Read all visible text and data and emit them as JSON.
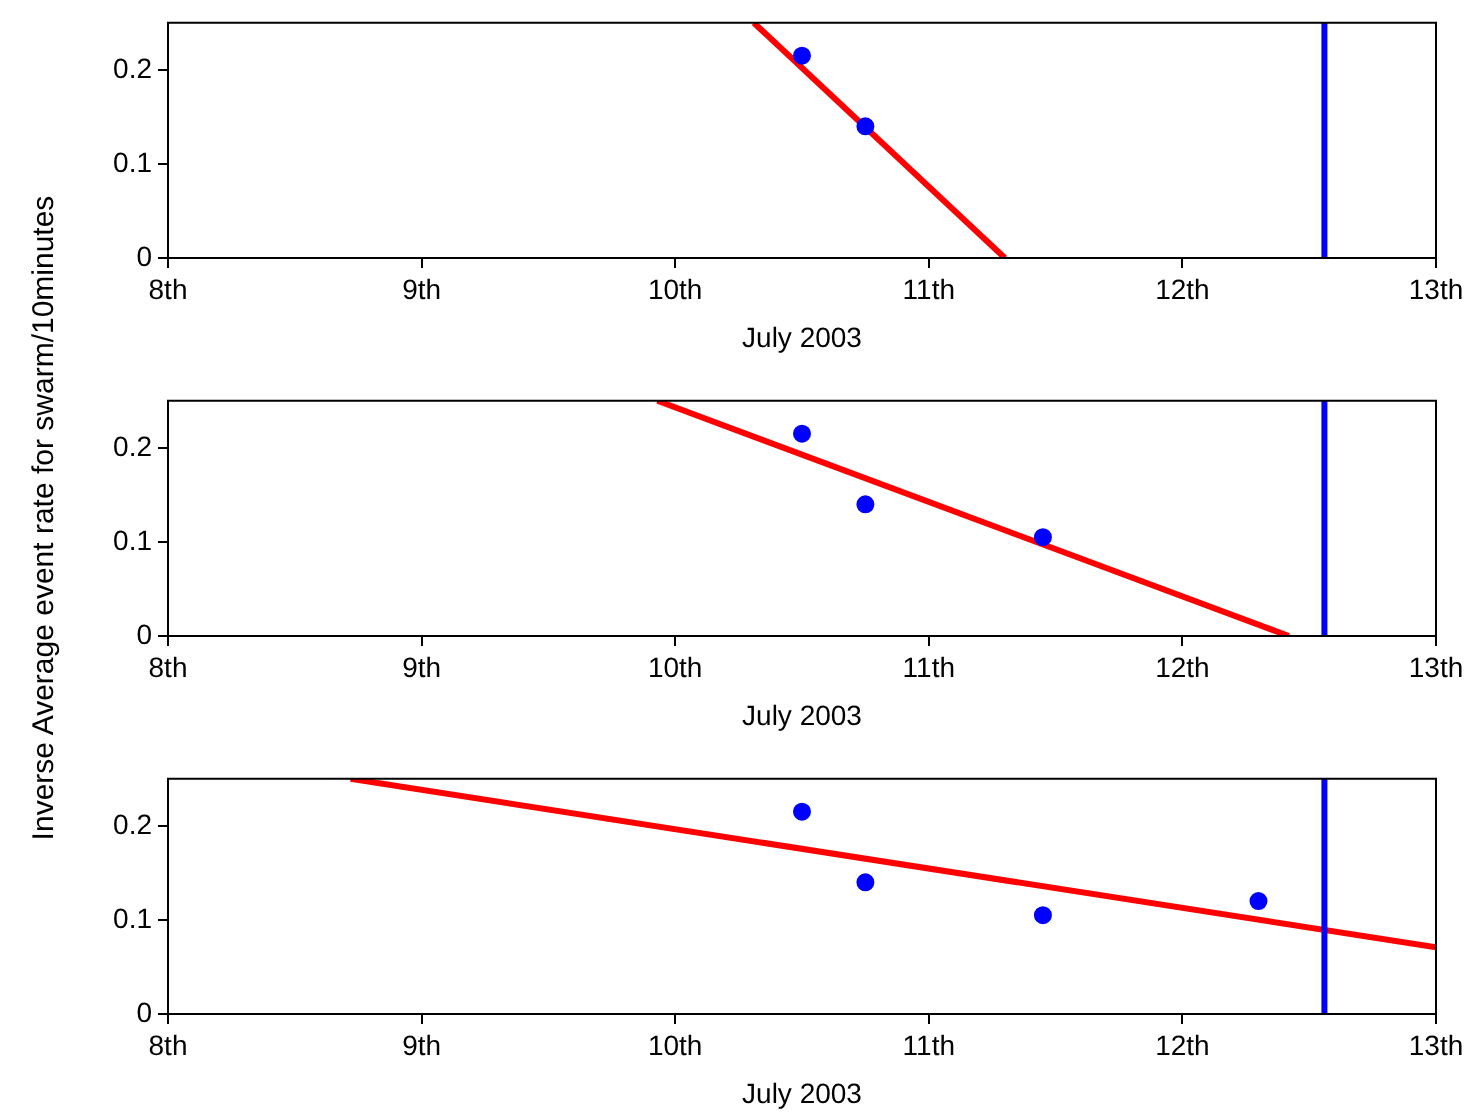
{
  "chart_data": [
    {
      "type": "scatter",
      "xlabel": "July 2003",
      "xlim": [
        8,
        13
      ],
      "ylim": [
        0,
        0.25
      ],
      "xticks": [
        {
          "value": 8,
          "label": "8th"
        },
        {
          "value": 9,
          "label": "9th"
        },
        {
          "value": 10,
          "label": "10th"
        },
        {
          "value": 11,
          "label": "11th"
        },
        {
          "value": 12,
          "label": "12th"
        },
        {
          "value": 13,
          "label": "13th"
        }
      ],
      "yticks": [
        0,
        0.1,
        0.2
      ],
      "grid": false,
      "legend": false,
      "series": [
        {
          "color": "#0000ff",
          "marker": "circle",
          "x": [
            10.5,
            10.75
          ],
          "values": [
            0.215,
            0.14
          ]
        },
        {
          "type": "line",
          "color": "#ff0000",
          "marker": "none",
          "x": [
            10.31,
            11.3
          ],
          "values": [
            0.25,
            0
          ]
        }
      ],
      "ref_lines": [
        {
          "axis": "x",
          "value": 12.56,
          "color": "#0000ff"
        }
      ]
    },
    {
      "type": "scatter",
      "xlabel": "July 2003",
      "ylabel": "Inverse Average event rate for swarm/10minutes",
      "xlim": [
        8,
        13
      ],
      "ylim": [
        0,
        0.25
      ],
      "xticks": [
        {
          "value": 8,
          "label": "8th"
        },
        {
          "value": 9,
          "label": "9th"
        },
        {
          "value": 10,
          "label": "10th"
        },
        {
          "value": 11,
          "label": "11th"
        },
        {
          "value": 12,
          "label": "12th"
        },
        {
          "value": 13,
          "label": "13th"
        }
      ],
      "yticks": [
        0,
        0.1,
        0.2
      ],
      "grid": false,
      "legend": false,
      "series": [
        {
          "color": "#0000ff",
          "marker": "circle",
          "x": [
            10.5,
            10.75,
            11.45
          ],
          "values": [
            0.215,
            0.14,
            0.105
          ]
        },
        {
          "type": "line",
          "color": "#ff0000",
          "marker": "none",
          "x": [
            9.93,
            12.42
          ],
          "values": [
            0.25,
            0
          ]
        }
      ],
      "ref_lines": [
        {
          "axis": "x",
          "value": 12.56,
          "color": "#0000ff"
        }
      ]
    },
    {
      "type": "scatter",
      "xlabel": "July 2003",
      "xlim": [
        8,
        13
      ],
      "ylim": [
        0,
        0.25
      ],
      "xticks": [
        {
          "value": 8,
          "label": "8th"
        },
        {
          "value": 9,
          "label": "9th"
        },
        {
          "value": 10,
          "label": "10th"
        },
        {
          "value": 11,
          "label": "11th"
        },
        {
          "value": 12,
          "label": "12th"
        },
        {
          "value": 13,
          "label": "13th"
        }
      ],
      "yticks": [
        0,
        0.1,
        0.2
      ],
      "grid": false,
      "legend": false,
      "series": [
        {
          "color": "#0000ff",
          "marker": "circle",
          "x": [
            10.5,
            10.75,
            11.45,
            12.3
          ],
          "values": [
            0.215,
            0.14,
            0.105,
            0.12
          ]
        },
        {
          "type": "line",
          "color": "#ff0000",
          "marker": "none",
          "x": [
            8.72,
            13
          ],
          "values": [
            0.25,
            0.071
          ]
        }
      ],
      "ref_lines": [
        {
          "axis": "x",
          "value": 12.56,
          "color": "#0000ff"
        }
      ]
    }
  ]
}
